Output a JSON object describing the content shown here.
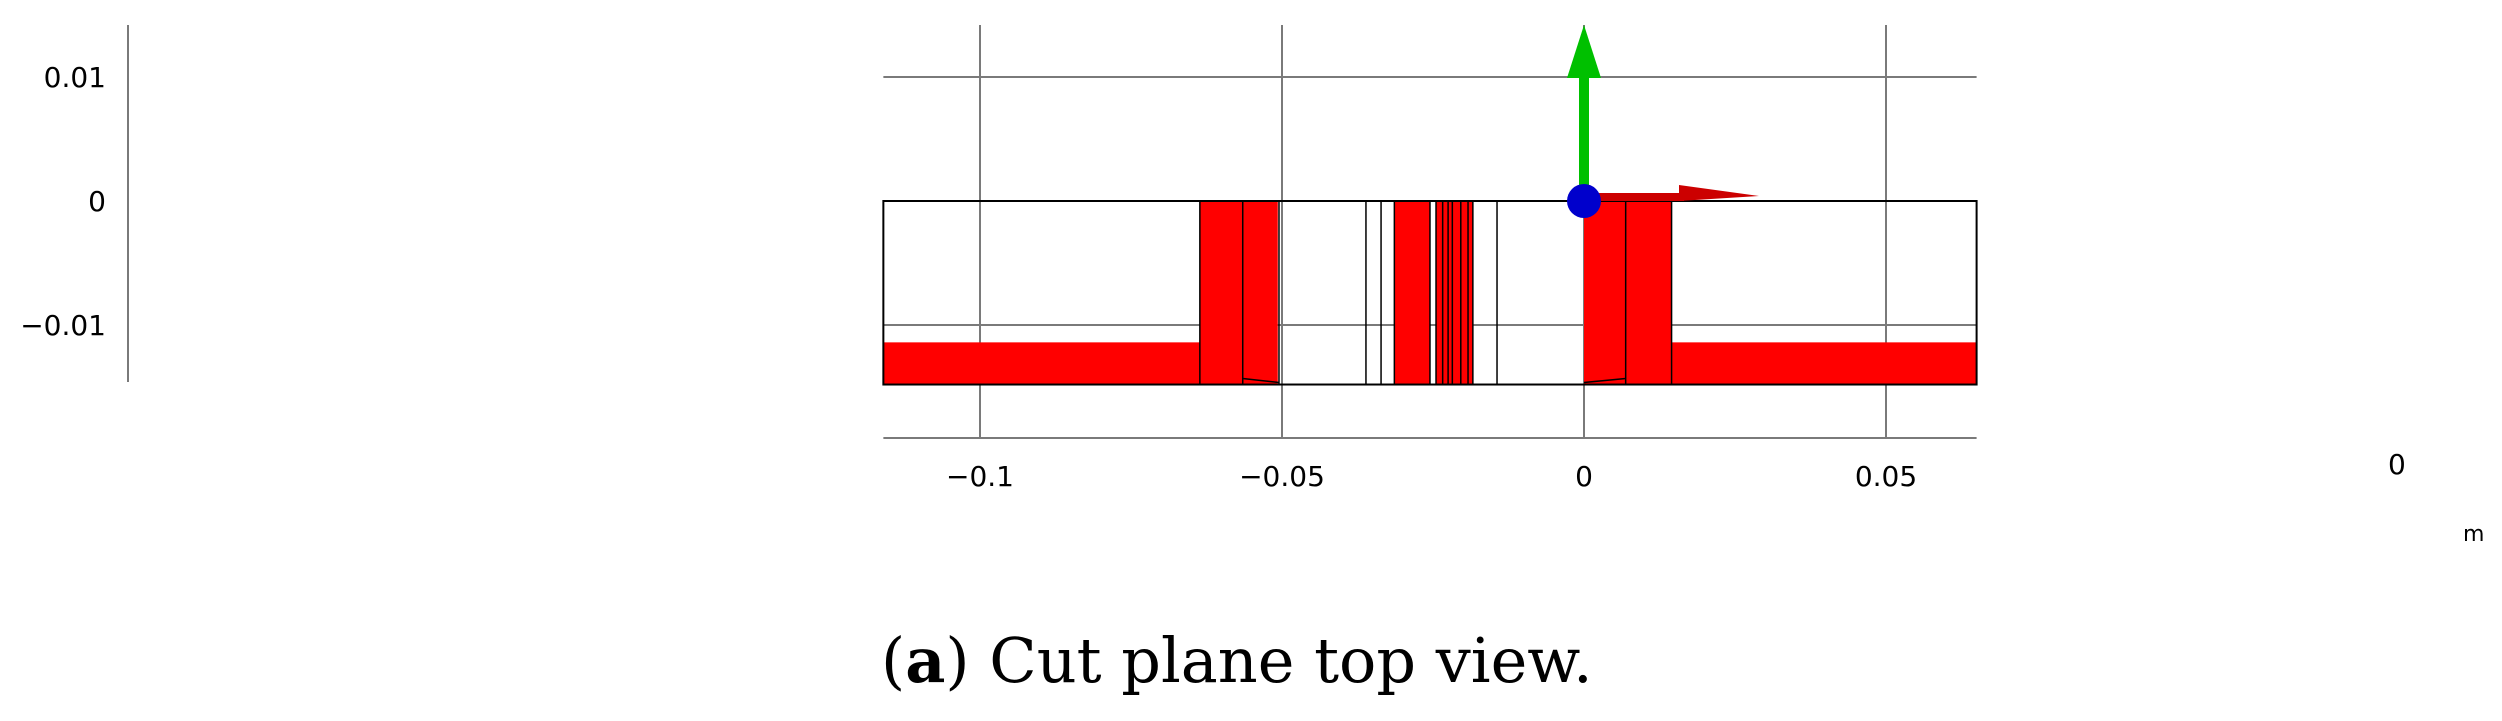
{
  "figure": {
    "axes": {
      "x_ticks": [
        {
          "value": -0.1,
          "label": "−0.1"
        },
        {
          "value": -0.05,
          "label": "−0.05"
        },
        {
          "value": 0,
          "label": "0"
        },
        {
          "value": 0.05,
          "label": "0.05"
        }
      ],
      "y_ticks": [
        {
          "value": 0.01,
          "label": "0.01"
        },
        {
          "value": 0,
          "label": "0"
        },
        {
          "value": -0.01,
          "label": "−0.01"
        }
      ],
      "corner_label": "0",
      "unit": "m",
      "xlim": [
        -0.116,
        0.065
      ],
      "ylim": [
        -0.0148,
        0.0155
      ]
    },
    "domain_bounds": {
      "x": [
        -0.116,
        0.065
      ],
      "y": [
        -0.0148,
        0
      ]
    },
    "colors": {
      "conductor": "#ff0000",
      "outline": "#000000",
      "grid": "#7a7a7a",
      "axis_y": "#00c000",
      "axis_x": "#cc0000",
      "origin_point": "#0000cc"
    },
    "caption": {
      "open_paren": "(",
      "letter": "a",
      "close_paren": ")",
      "text": " Cut plane top view."
    }
  }
}
